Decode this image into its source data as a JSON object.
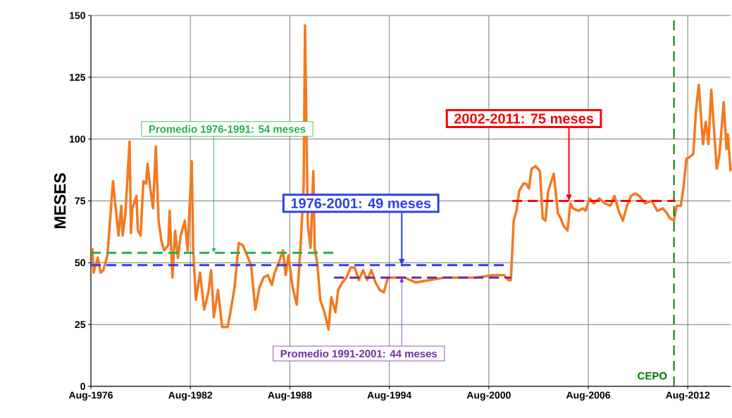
{
  "chart_data": {
    "type": "line",
    "ylabel": "MESES",
    "xlim": [
      "1976-08",
      "2015-03"
    ],
    "xticks": [
      {
        "value": "1976-08",
        "label": "Aug-1976"
      },
      {
        "value": "1982-08",
        "label": "Aug-1982"
      },
      {
        "value": "1988-08",
        "label": "Aug-1988"
      },
      {
        "value": "1994-08",
        "label": "Aug-1994"
      },
      {
        "value": "2000-08",
        "label": "Aug-2000"
      },
      {
        "value": "2006-08",
        "label": "Aug-2006"
      },
      {
        "value": "2012-08",
        "label": "Aug-2012"
      }
    ],
    "ylim": [
      0,
      150
    ],
    "yticks": [
      0,
      25,
      50,
      75,
      100,
      125,
      150
    ],
    "grid": true,
    "marker": "none",
    "series": [
      {
        "color": "#f4791f",
        "line_style": "solid",
        "x": [
          "1976-09",
          "1976-10",
          "1977-01",
          "1977-03",
          "1977-05",
          "1977-08",
          "1977-12",
          "1978-04",
          "1978-06",
          "1978-07",
          "1978-09",
          "1978-12",
          "1979-01",
          "1979-02",
          "1979-05",
          "1979-06",
          "1979-08",
          "1979-10",
          "1979-12",
          "1980-01",
          "1980-03",
          "1980-05",
          "1980-07",
          "1980-09",
          "1980-11",
          "1981-01",
          "1981-04",
          "1981-05",
          "1981-07",
          "1981-09",
          "1981-11",
          "1982-01",
          "1982-04",
          "1982-06",
          "1982-09",
          "1982-10",
          "1982-12",
          "1983-03",
          "1983-06",
          "1983-09",
          "1983-11",
          "1984-01",
          "1984-04",
          "1984-07",
          "1984-11",
          "1985-01",
          "1985-04",
          "1985-07",
          "1985-10",
          "1986-01",
          "1986-04",
          "1986-07",
          "1986-10",
          "1987-01",
          "1987-04",
          "1987-07",
          "1987-09",
          "1987-12",
          "1988-03",
          "1988-05",
          "1988-07",
          "1988-10",
          "1989-01",
          "1989-04",
          "1989-06",
          "1989-07",
          "1989-09",
          "1989-11",
          "1990-01",
          "1990-02",
          "1990-04",
          "1990-06",
          "1990-09",
          "1990-12",
          "1991-02",
          "1991-05",
          "1991-07",
          "1991-10",
          "1992-01",
          "1992-04",
          "1992-07",
          "1992-10",
          "1993-01",
          "1993-04",
          "1993-07",
          "1993-10",
          "1994-01",
          "1994-04",
          "1994-07",
          "1994-11",
          "1995-07",
          "1996-03",
          "1997-01",
          "1997-12",
          "1998-12",
          "1999-11",
          "2000-11",
          "2001-07",
          "2001-10",
          "2001-12",
          "2002-02",
          "2002-04",
          "2002-06",
          "2002-09",
          "2002-11",
          "2003-01",
          "2003-03",
          "2003-06",
          "2003-09",
          "2003-11",
          "2004-01",
          "2004-03",
          "2004-07",
          "2004-08",
          "2004-10",
          "2004-12",
          "2005-02",
          "2005-05",
          "2005-07",
          "2005-09",
          "2006-01",
          "2006-04",
          "2006-06",
          "2006-09",
          "2006-12",
          "2007-04",
          "2007-08",
          "2007-12",
          "2008-03",
          "2008-06",
          "2008-09",
          "2008-12",
          "2009-03",
          "2009-06",
          "2009-09",
          "2010-01",
          "2010-06",
          "2010-10",
          "2011-02",
          "2011-05",
          "2011-07",
          "2011-10",
          "2011-12",
          "2012-03",
          "2012-05",
          "2012-07",
          "2012-10",
          "2012-12",
          "2013-02",
          "2013-04",
          "2013-07",
          "2013-09",
          "2013-11",
          "2014-01",
          "2014-05",
          "2014-07",
          "2014-10",
          "2014-12",
          "2015-01",
          "2015-03"
        ],
        "values": [
          56,
          46,
          52,
          46,
          47,
          53,
          83,
          61,
          73,
          61,
          70,
          99,
          62,
          72,
          77,
          63,
          61,
          83,
          82,
          90,
          80,
          72,
          97,
          67,
          59,
          55,
          57,
          71,
          44,
          63,
          52,
          61,
          67,
          55,
          91,
          56,
          35,
          46,
          31,
          38,
          47,
          28,
          39,
          24,
          24,
          30,
          40,
          58,
          57,
          53,
          49,
          31,
          40,
          44,
          45,
          41,
          46,
          50,
          55,
          45,
          53,
          40,
          33,
          59,
          81,
          146,
          65,
          56,
          87,
          56,
          49,
          35,
          30,
          23,
          36,
          30,
          39,
          42,
          44,
          48,
          48,
          43,
          47,
          43,
          47,
          42,
          39,
          38,
          44,
          44,
          44,
          42,
          43,
          44,
          44,
          44,
          45,
          45,
          43,
          43,
          67,
          71,
          79,
          82,
          82,
          80,
          88,
          89,
          87,
          68,
          67,
          79,
          86,
          81,
          70,
          68,
          65,
          63,
          74,
          72,
          71,
          72,
          71,
          76,
          74,
          76,
          74,
          73,
          77,
          71,
          67,
          73,
          77,
          78,
          77,
          74,
          75,
          71,
          72,
          70,
          68,
          67,
          73,
          73,
          81,
          92,
          93,
          94,
          112,
          122,
          98,
          107,
          98,
          120,
          88,
          94,
          115,
          96,
          102,
          87
        ]
      },
      {
        "color": "#22b14c",
        "line_style": "dashed",
        "x": [
          "1976-08",
          "1991-04"
        ],
        "values": [
          54,
          54
        ]
      },
      {
        "color": "#2e3fe8",
        "line_style": "dashed",
        "x": [
          "1976-08",
          "2001-07"
        ],
        "values": [
          49,
          49
        ]
      },
      {
        "color": "#7030a0",
        "line_style": "dashed",
        "x": [
          "1991-04",
          "2001-12"
        ],
        "values": [
          44,
          44
        ]
      },
      {
        "color": "#ff0000",
        "line_style": "dashed",
        "x": [
          "2002-01",
          "2011-11"
        ],
        "values": [
          75,
          75
        ]
      }
    ],
    "ref_lines": [
      {
        "axis": "x",
        "value": "2011-10",
        "label": "CEPO",
        "color": "#007a00",
        "line_style": "dashed"
      }
    ],
    "annotations": [
      {
        "text": "Promedio 1976-1991: 54 meses",
        "x": "1984-01",
        "y": 54
      },
      {
        "text": "1976-2001: 49 meses",
        "x": "1995-05",
        "y": 49
      },
      {
        "text": "Promedio 1991-2001: 44 meses",
        "x": "1995-05",
        "y": 44
      },
      {
        "text": "2002-2011: 75 meses",
        "x": "2005-06",
        "y": 75
      }
    ]
  }
}
